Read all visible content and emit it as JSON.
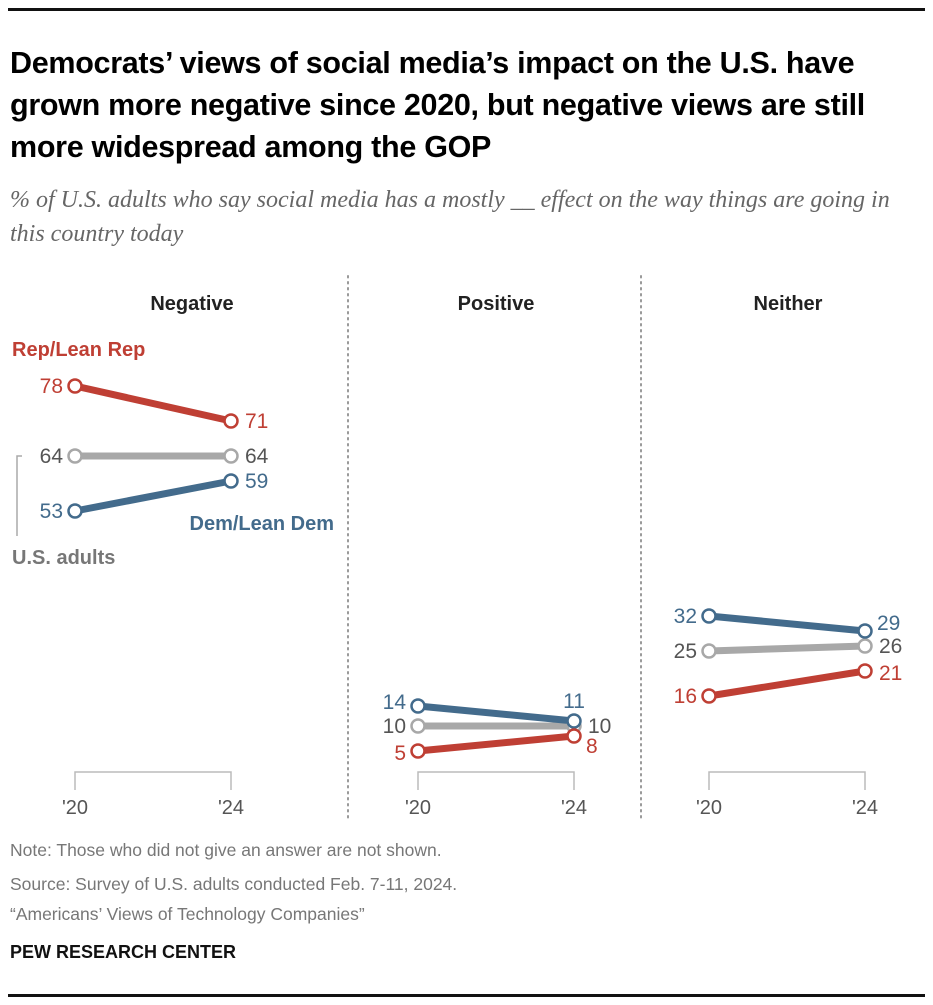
{
  "header": {
    "title": "Democrats’ views of social media’s impact on the U.S. have grown more negative since 2020, but negative views are still more widespread among the GOP",
    "subtitle": "% of U.S. adults who say social media has a mostly __ effect on the way things are going in this country today"
  },
  "footer": {
    "note": "Note: Those who did not give an answer are not shown.",
    "source": "Source: Survey of U.S. adults conducted Feb. 7-11, 2024.",
    "report": "“Americans’ Views of Technology Companies”",
    "brand": "PEW RESEARCH CENTER"
  },
  "chart_data": {
    "type": "line",
    "title": "Democrats’ views of social media’s impact on the U.S. have grown more negative since 2020, but negative views are still more widespread among the GOP",
    "x": [
      "'20",
      "'24"
    ],
    "ylim": [
      0,
      100
    ],
    "grid": false,
    "series_labels": {
      "rep": "Rep/Lean Rep",
      "dem": "Dem/Lean Dem",
      "all": "U.S. adults"
    },
    "colors": {
      "rep": "#bf3f34",
      "dem": "#436b8c",
      "all": "#a8a8a8"
    },
    "label_colors": {
      "rep": "#bf3f34",
      "dem": "#436b8c",
      "all": "#555555"
    },
    "panels": [
      {
        "name": "Negative",
        "series": [
          {
            "key": "rep",
            "name": "Rep/Lean Rep",
            "values": [
              78,
              71
            ]
          },
          {
            "key": "all",
            "name": "U.S. adults",
            "values": [
              64,
              64
            ]
          },
          {
            "key": "dem",
            "name": "Dem/Lean Dem",
            "values": [
              53,
              59
            ]
          }
        ]
      },
      {
        "name": "Positive",
        "series": [
          {
            "key": "dem",
            "name": "Dem/Lean Dem",
            "values": [
              14,
              11
            ]
          },
          {
            "key": "all",
            "name": "U.S. adults",
            "values": [
              10,
              10
            ]
          },
          {
            "key": "rep",
            "name": "Rep/Lean Rep",
            "values": [
              5,
              8
            ]
          }
        ]
      },
      {
        "name": "Neither",
        "series": [
          {
            "key": "dem",
            "name": "Dem/Lean Dem",
            "values": [
              32,
              29
            ]
          },
          {
            "key": "all",
            "name": "U.S. adults",
            "values": [
              25,
              26
            ]
          },
          {
            "key": "rep",
            "name": "Rep/Lean Rep",
            "values": [
              16,
              21
            ]
          }
        ]
      }
    ]
  }
}
